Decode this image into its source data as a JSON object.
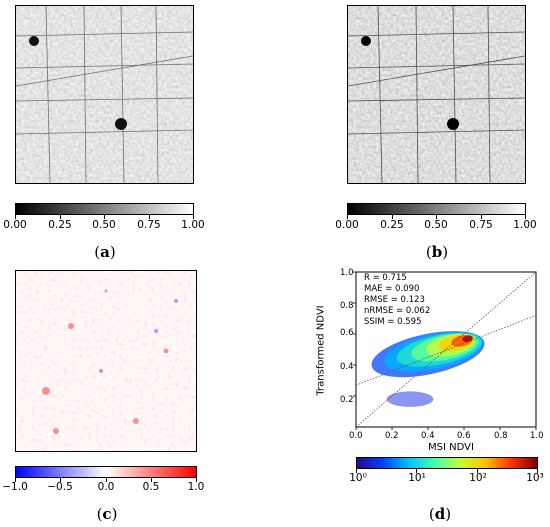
{
  "panels": {
    "a": {
      "label_open": "(",
      "letter": "a",
      "label_close": ")",
      "colorbar_ticks": [
        "0.00",
        "0.25",
        "0.50",
        "0.75",
        "1.00"
      ]
    },
    "b": {
      "label_open": "(",
      "letter": "b",
      "label_close": ")",
      "colorbar_ticks": [
        "0.00",
        "0.25",
        "0.50",
        "0.75",
        "1.00"
      ]
    },
    "c": {
      "label_open": "(",
      "letter": "c",
      "label_close": ")",
      "colorbar_ticks": [
        "−1.0",
        "−0.5",
        "0.0",
        "0.5",
        "1.0"
      ]
    },
    "d": {
      "label_open": "(",
      "letter": "d",
      "label_close": ")",
      "colorbar_ticks": [
        "10⁰",
        "10¹",
        "10²",
        "10³"
      ]
    }
  },
  "colors": {
    "diverging_neg": "#2020ff",
    "diverging_pos": "#ff2020"
  },
  "chart_data": {
    "type": "scatter",
    "xlabel": "MSI NDVI",
    "ylabel": "Transformed NDVI",
    "xlim": [
      0.0,
      1.0
    ],
    "ylim": [
      0.0,
      1.0
    ],
    "x_ticks": [
      "0.0",
      "0.2",
      "0.4",
      "0.6",
      "0.8",
      "1.0"
    ],
    "y_ticks": [
      "0.2",
      "0.4",
      "0.6",
      "0.8",
      "1.0"
    ],
    "stats": [
      "R = 0.715",
      "MAE = 0.090",
      "RMSE = 0.123",
      "nRMSE = 0.062",
      "SSIM = 0.595"
    ],
    "reference_line": {
      "type": "1:1",
      "style": "dotted"
    },
    "fit_line": {
      "x": [
        0.0,
        1.0
      ],
      "y": [
        0.27,
        0.72
      ],
      "style": "dotted"
    },
    "density_scale": "log",
    "density_range": [
      1,
      1000
    ],
    "density_core": {
      "x": 0.62,
      "y": 0.57
    }
  }
}
